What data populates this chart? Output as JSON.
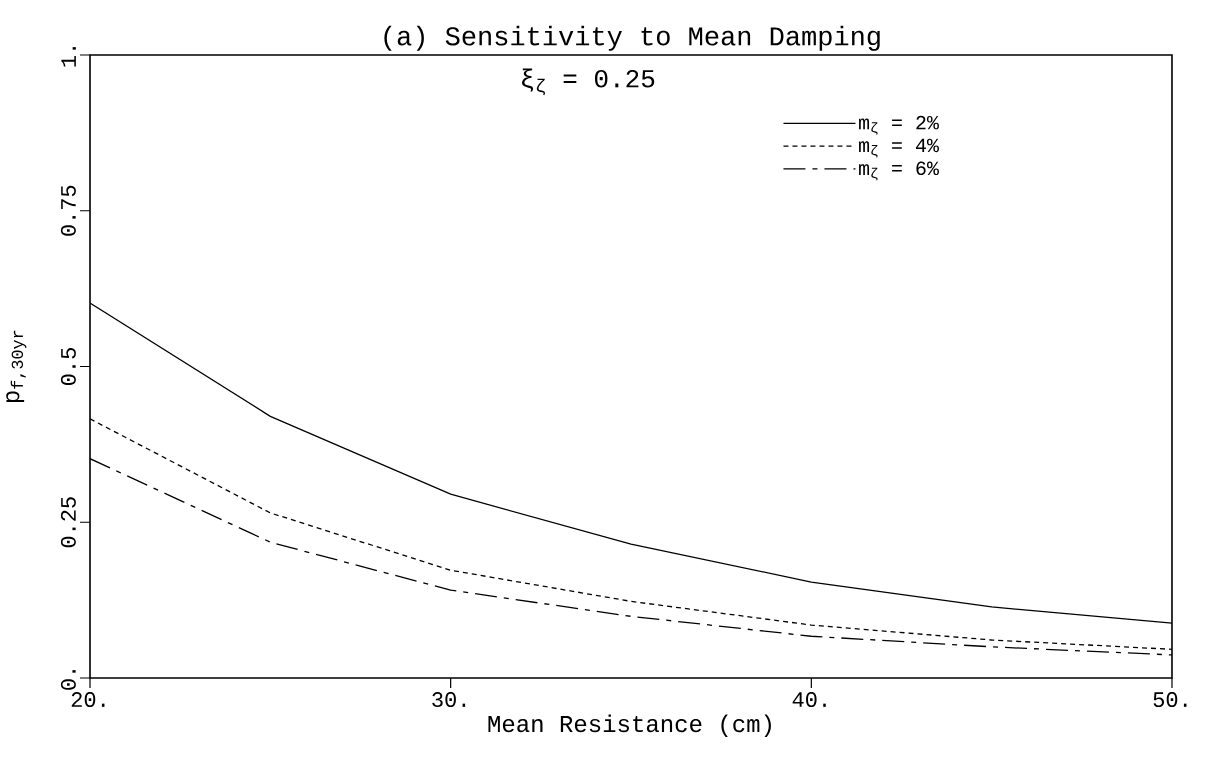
{
  "chart_data": {
    "type": "line",
    "title": "(a) Sensitivity to Mean Damping",
    "xlabel": "Mean Resistance (cm)",
    "ylabel": "p$_{f,30yr}$",
    "annotations": [
      "ξ$_{ζ}$ = 0.25"
    ],
    "x": [
      20,
      25,
      30,
      35,
      40,
      45,
      50
    ],
    "series": [
      {
        "name": "m$_{ζ}$ = 2%",
        "color": "#000000",
        "line_style": "solid",
        "values": [
          0.602,
          0.42,
          0.295,
          0.215,
          0.154,
          0.114,
          0.088
        ]
      },
      {
        "name": "m$_{ζ}$ = 4%",
        "color": "#000000",
        "line_style": "dotted",
        "values": [
          0.416,
          0.265,
          0.173,
          0.123,
          0.085,
          0.061,
          0.046
        ]
      },
      {
        "name": "m$_{ζ}$ = 6%",
        "color": "#000000",
        "line_style": "dashed",
        "values": [
          0.352,
          0.218,
          0.141,
          0.099,
          0.067,
          0.05,
          0.037
        ]
      }
    ],
    "xlim": [
      20,
      50
    ],
    "ylim": [
      0,
      1
    ],
    "xticks": [
      {
        "value": 20,
        "label": "20."
      },
      {
        "value": 30,
        "label": "30."
      },
      {
        "value": 40,
        "label": "40."
      },
      {
        "value": 50,
        "label": "50."
      }
    ],
    "yticks": [
      {
        "value": 0,
        "label": "0."
      },
      0.25,
      0.5,
      0.75,
      {
        "value": 1,
        "label": "1."
      }
    ],
    "grid": false,
    "legend": "top right",
    "marker": "none"
  }
}
